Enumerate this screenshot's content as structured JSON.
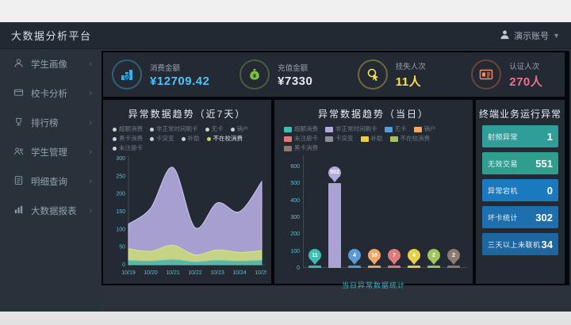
{
  "topbar": {
    "title": "大数据分析平台",
    "user": "演示账号"
  },
  "sidebar": {
    "items": [
      {
        "label": "学生画像",
        "icon": "student-icon"
      },
      {
        "label": "校卡分析",
        "icon": "card-icon"
      },
      {
        "label": "排行榜",
        "icon": "trophy-icon"
      },
      {
        "label": "学生管理",
        "icon": "manage-icon"
      },
      {
        "label": "明细查询",
        "icon": "query-icon"
      },
      {
        "label": "大数据报表",
        "icon": "report-icon"
      }
    ]
  },
  "kpis": [
    {
      "label": "消费金额",
      "value": "¥12709.42",
      "color": "#4fc3f7",
      "icon": "consume-chart-icon"
    },
    {
      "label": "充值金额",
      "value": "¥7330",
      "color": "#8bc34a",
      "value_color": "#e3e9ee",
      "icon": "money-bag-icon"
    },
    {
      "label": "挂失人次",
      "value": "11人",
      "color": "#ffe04d",
      "icon": "hand-click-icon"
    },
    {
      "label": "认证人次",
      "value": "270人",
      "color": "#ff7043",
      "value_color": "#f2708a",
      "icon": "id-card-icon"
    }
  ],
  "chart_data": [
    {
      "type": "area",
      "title": "异常数据趋势（近7天）",
      "x": [
        "10/19",
        "10/20",
        "10/21",
        "10/22",
        "10/23",
        "10/24",
        "10/25"
      ],
      "ylim": [
        0,
        300
      ],
      "yticks": [
        0,
        50,
        100,
        150,
        200,
        250,
        300
      ],
      "grid": false,
      "legend_position": "top",
      "legend": [
        {
          "label": "超额消费",
          "dot": "#c9d1d9",
          "bright": false
        },
        {
          "label": "非正常时间刷卡",
          "dot": "#c9d1d9",
          "bright": false
        },
        {
          "label": "无卡",
          "dot": "#c9d1d9",
          "bright": false
        },
        {
          "label": "销户",
          "dot": "#c9d1d9",
          "bright": false
        },
        {
          "label": "黑卡消费",
          "dot": "#c9d1d9",
          "bright": false
        },
        {
          "label": "卡突变",
          "dot": "#c9d1d9",
          "bright": false
        },
        {
          "label": "补助",
          "dot": "#c9d1d9",
          "bright": false
        },
        {
          "label": "不在校消费",
          "dot": "#c6d94e",
          "bright": true
        },
        {
          "label": "未注册卡",
          "dot": "#c9d1d9",
          "bright": false
        }
      ],
      "series": [
        {
          "name": "非正常时间刷卡",
          "color": "#b2a9dc",
          "stroke": "#cfc7ef",
          "values": [
            115,
            160,
            275,
            105,
            175,
            150,
            235
          ]
        },
        {
          "name": "补助",
          "color": "#c9d67e",
          "stroke": "#d8e48f",
          "values": [
            45,
            38,
            55,
            28,
            42,
            35,
            40
          ]
        },
        {
          "name": "超额消费",
          "color": "#4fb3a8",
          "stroke": "#5fc4b9",
          "values": [
            12,
            10,
            14,
            8,
            12,
            10,
            12
          ]
        }
      ]
    },
    {
      "type": "bar",
      "title": "异常数据趋势（当日）",
      "caption": "当日异常数据统计",
      "ylim": [
        0,
        600
      ],
      "yticks": [
        0,
        100,
        200,
        300,
        400,
        500,
        600
      ],
      "grid": false,
      "legend_position": "top",
      "legend": [
        {
          "label": "超额消费",
          "color": "#3fbdb2"
        },
        {
          "label": "非正常时间刷卡",
          "color": "#b2a9dc"
        },
        {
          "label": "无卡",
          "color": "#5b9bd5"
        },
        {
          "label": "销户",
          "color": "#f0a868"
        },
        {
          "label": "未注册卡",
          "color": "#e07a7a"
        },
        {
          "label": "卡突变",
          "color": "#8a8f98"
        },
        {
          "label": "补助",
          "color": "#e8cf4a"
        },
        {
          "label": "不在校消费",
          "color": "#a2c45e"
        },
        {
          "label": "黑卡消费",
          "color": "#8d7a70"
        }
      ],
      "categories": [
        "超额消费",
        "非正常时间刷卡",
        "无卡",
        "销户",
        "未注册卡",
        "补助",
        "不在校消费",
        "黑卡消费"
      ],
      "values": [
        11,
        502,
        4,
        10,
        7,
        4,
        2,
        2
      ],
      "colors": [
        "#3fbdb2",
        "#b2a9dc",
        "#5b9bd5",
        "#f0a868",
        "#e07a7a",
        "#e8cf4a",
        "#a2c45e",
        "#8d7a70"
      ]
    }
  ],
  "terminal": {
    "title": "终端业务运行异常",
    "items": [
      {
        "label": "射频异常",
        "value": "1",
        "color": "#2f9e98"
      },
      {
        "label": "无效交易",
        "value": "551",
        "color": "#2f9e8f"
      },
      {
        "label": "异常宕机",
        "value": "0",
        "color": "#1b79c0"
      },
      {
        "label": "坏卡统计",
        "value": "302",
        "color": "#1d6fae"
      },
      {
        "label": "三天以上未联机",
        "value": "34",
        "color": "#1d66a0"
      }
    ]
  }
}
